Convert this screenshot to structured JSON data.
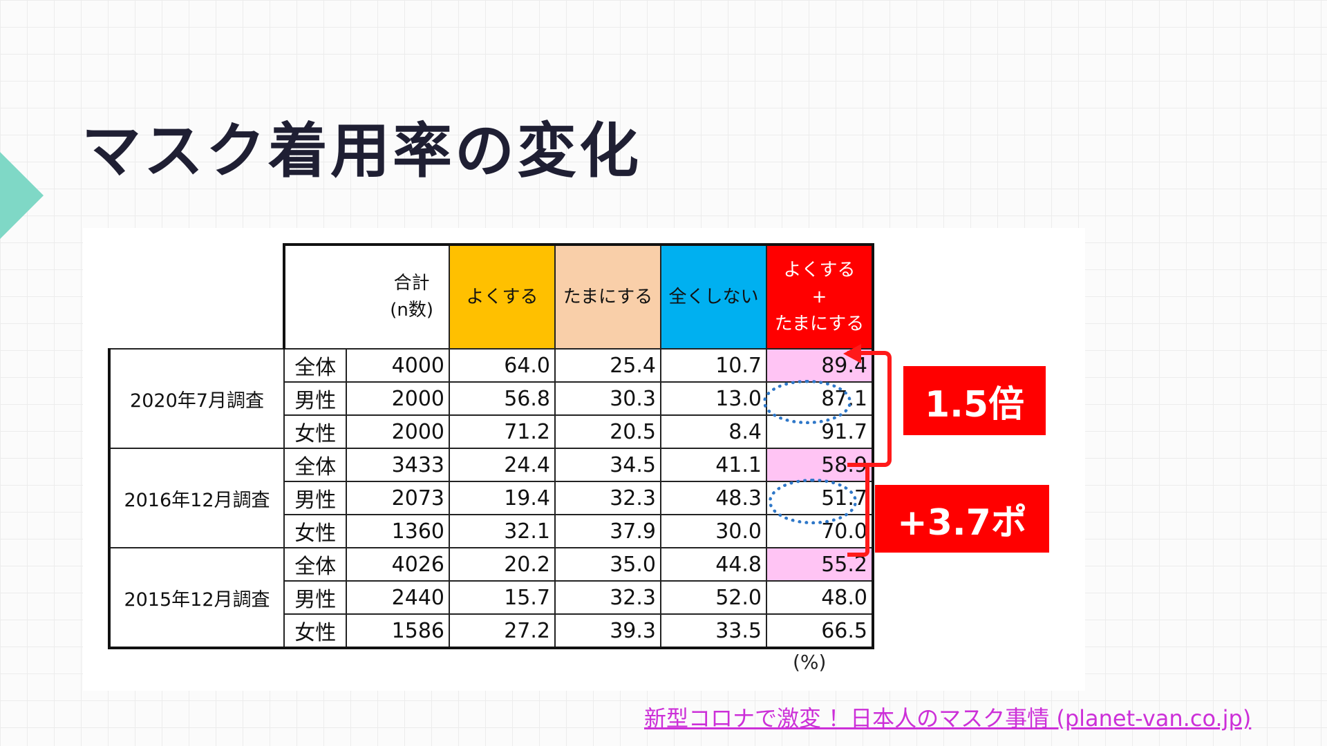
{
  "title": "マスク着用率の変化",
  "table": {
    "headers": {
      "total": "合計\n(n数)",
      "often": "よくする",
      "sometimes": "たまにする",
      "never": "全くしない",
      "sum_line1": "よくする",
      "sum_line2": "+",
      "sum_line3": "たまにする"
    },
    "groups": [
      {
        "label": "2020年7月調査",
        "rows": [
          {
            "sub": "全体",
            "n": "4000",
            "often": "64.0",
            "sometimes": "25.4",
            "never": "10.7",
            "sum": "89.4"
          },
          {
            "sub": "男性",
            "n": "2000",
            "often": "56.8",
            "sometimes": "30.3",
            "never": "13.0",
            "sum": "87.1"
          },
          {
            "sub": "女性",
            "n": "2000",
            "often": "71.2",
            "sometimes": "20.5",
            "never": "8.4",
            "sum": "91.7"
          }
        ]
      },
      {
        "label": "2016年12月調査",
        "rows": [
          {
            "sub": "全体",
            "n": "3433",
            "often": "24.4",
            "sometimes": "34.5",
            "never": "41.1",
            "sum": "58.9"
          },
          {
            "sub": "男性",
            "n": "2073",
            "often": "19.4",
            "sometimes": "32.3",
            "never": "48.3",
            "sum": "51.7"
          },
          {
            "sub": "女性",
            "n": "1360",
            "often": "32.1",
            "sometimes": "37.9",
            "never": "30.0",
            "sum": "70.0"
          }
        ]
      },
      {
        "label": "2015年12月調査",
        "rows": [
          {
            "sub": "全体",
            "n": "4026",
            "often": "20.2",
            "sometimes": "35.0",
            "never": "44.8",
            "sum": "55.2"
          },
          {
            "sub": "男性",
            "n": "2440",
            "often": "15.7",
            "sometimes": "32.3",
            "never": "52.0",
            "sum": "48.0"
          },
          {
            "sub": "女性",
            "n": "1586",
            "often": "27.2",
            "sometimes": "39.3",
            "never": "33.5",
            "sum": "66.5"
          }
        ]
      }
    ],
    "unit": "(%)"
  },
  "callouts": {
    "ratio": "1.5倍",
    "increase": "+3.7ポ"
  },
  "source_link": "新型コロナで激変 ！日本人のマスク事情 (planet-van.co.jp)",
  "colors": {
    "accent_arrow": "#7fd8c6",
    "often_header": "#ffc000",
    "sometimes_header": "#f9cfa9",
    "never_header": "#00b0f0",
    "sum_header": "#ff0000",
    "highlight_cell": "#ffc4f4",
    "callout": "#ff0000",
    "dotted_ring": "#2e77c8",
    "link": "#cc2fd8"
  }
}
